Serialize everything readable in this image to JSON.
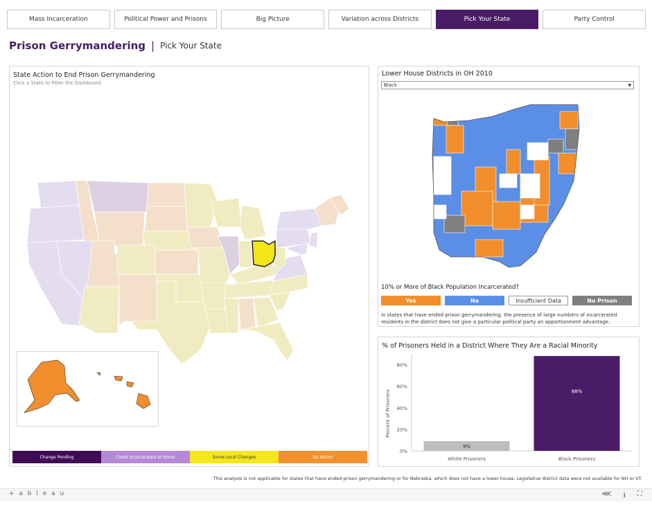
{
  "tabs": [
    {
      "label": "Mass Incarceration",
      "active": false
    },
    {
      "label": "Political Power and Prisons",
      "active": false
    },
    {
      "label": "Big Picture",
      "active": false
    },
    {
      "label": "Variation across Districts",
      "active": false
    },
    {
      "label": "Pick Your State",
      "active": true
    },
    {
      "label": "Party Control",
      "active": false
    }
  ],
  "page": {
    "title": "Prison Gerrymandering",
    "separator": "|",
    "subtitle": "Pick Your State"
  },
  "us_map": {
    "title": "State Action to End Prison Gerrymandering",
    "subtitle": "Click a State to Filter the Dashboard",
    "selected_state": "OH",
    "legend": [
      {
        "label": "Change Pending",
        "color": "#3f0b57",
        "text_color": "#ffffff"
      },
      {
        "label": "Count Incarcerated at Home",
        "color": "#b48ad8",
        "text_color": "#ffffff"
      },
      {
        "label": "Some Local Changes",
        "color": "#f5e61c",
        "text_color": "#333333"
      },
      {
        "label": "No Action",
        "color": "#f2922f",
        "text_color": "#ffffff"
      }
    ]
  },
  "district_map": {
    "title": "Lower House Districts in OH 2010",
    "dropdown_value": "Black",
    "question": "10% or More of Black Population Incarcerated?",
    "categories": [
      {
        "label": "Yes",
        "color": "#f28e2b",
        "text_color": "#ffffff"
      },
      {
        "label": "No",
        "color": "#5b8ee6",
        "text_color": "#ffffff"
      },
      {
        "label": "Insufficient Data",
        "color": "#ffffff",
        "text_color": "#333333"
      },
      {
        "label": "No Prison",
        "color": "#7f7f7f",
        "text_color": "#ffffff"
      }
    ],
    "note": "In states that have ended prison gerrymandering, the presence of large numbers of incarcerated residents in the district does not give a particular political party an apportionment advantage."
  },
  "minority_chart": {
    "title": "% of Prisoners Held in a District Where They Are a Racial Minority"
  },
  "chart_data": {
    "type": "bar",
    "title": "% of Prisoners Held in a District Where They Are a Racial Minority",
    "ylabel": "Percent of Prisoners",
    "categories": [
      "White Prisoners",
      "Black Prisoners"
    ],
    "values": [
      9,
      88
    ],
    "data_labels": [
      "9%",
      "88%"
    ],
    "colors": [
      "#bdbdbd",
      "#4a1c68"
    ],
    "ylim": [
      0,
      90
    ],
    "yticks": [
      0,
      20,
      40,
      60,
      80
    ],
    "ytick_labels": [
      "0%",
      "20%",
      "40%",
      "60%",
      "80%"
    ],
    "grid": false
  },
  "footer": {
    "note": "This analysis is not applicable for states that have ended prison gerrymandering or for Nebraska, which does not have a lower house. Legislative district data were not available for NH or VT.",
    "logo": "+ a b l e a u",
    "icons": [
      "share-icon",
      "download-icon",
      "fullscreen-icon"
    ]
  }
}
